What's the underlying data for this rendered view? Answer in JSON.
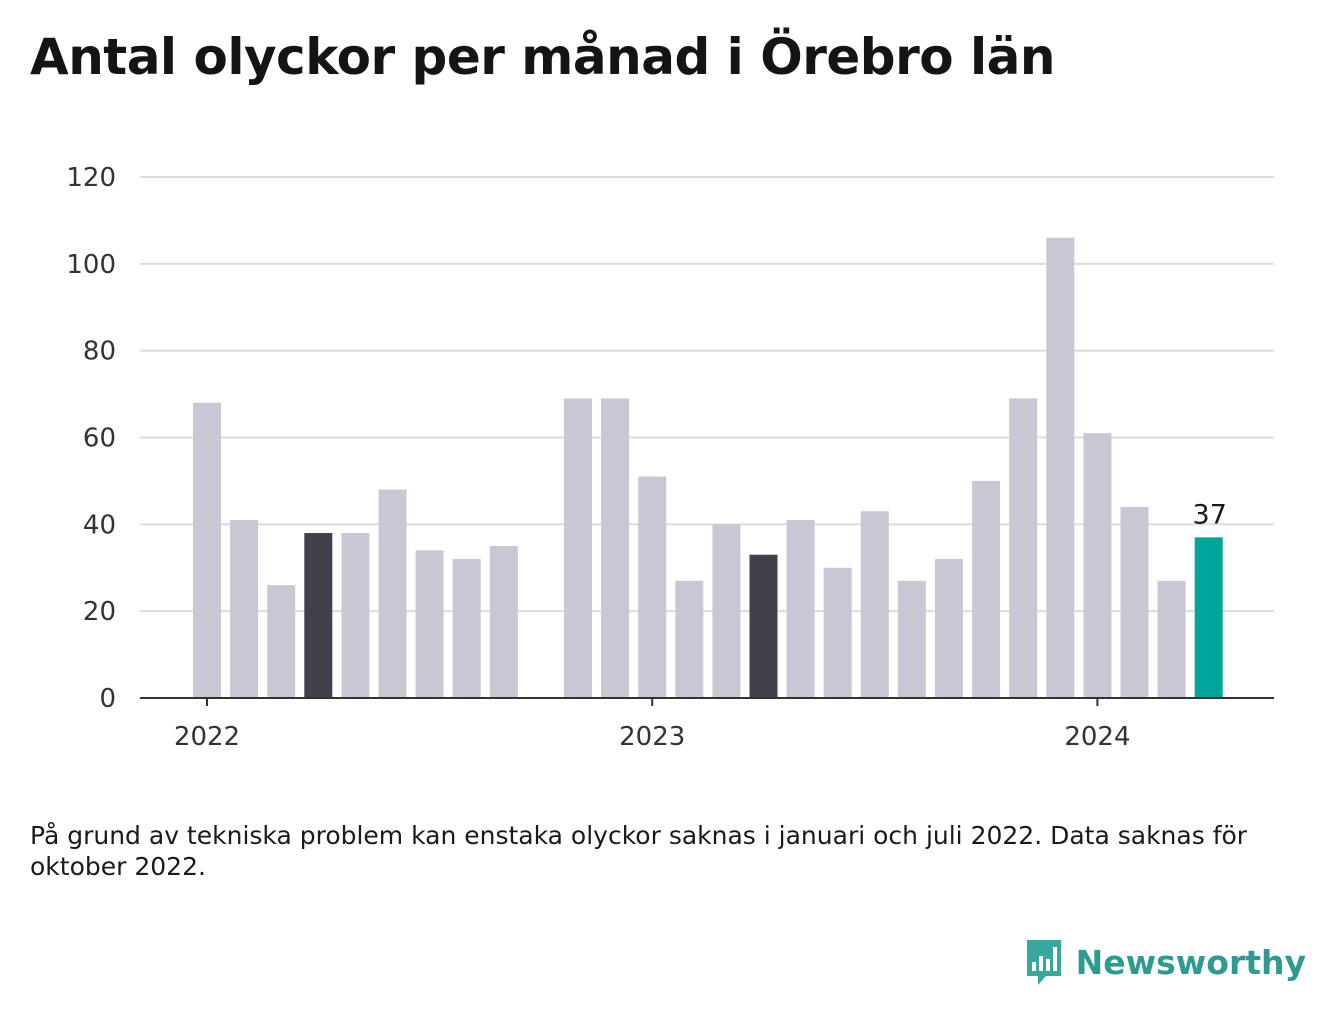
{
  "title": "Antal olyckor per månad i Örebro län",
  "note": "På grund av tekniska problem kan enstaka olyckor saknas i januari och juli 2022. Data saknas för oktober 2022.",
  "brand": {
    "name": "Newsworthy",
    "icon": "newsworthy-chart-bubble-icon"
  },
  "colors": {
    "default": "#c9c7d3",
    "highlight": "#43404c",
    "current": "#00a59a",
    "grid": "#dcdcdc",
    "axis": "#333333"
  },
  "chart_data": {
    "type": "bar",
    "x": [
      "2022-01",
      "2022-02",
      "2022-03",
      "2022-04",
      "2022-05",
      "2022-06",
      "2022-07",
      "2022-08",
      "2022-09",
      "2022-10",
      "2022-11",
      "2022-12",
      "2023-01",
      "2023-02",
      "2023-03",
      "2023-04",
      "2023-05",
      "2023-06",
      "2023-07",
      "2023-08",
      "2023-09",
      "2023-10",
      "2023-11",
      "2023-12",
      "2024-01",
      "2024-02",
      "2024-03",
      "2024-04"
    ],
    "values": [
      68,
      41,
      26,
      38,
      38,
      48,
      34,
      32,
      35,
      null,
      69,
      69,
      51,
      27,
      40,
      33,
      41,
      30,
      43,
      27,
      32,
      50,
      69,
      106,
      61,
      44,
      27,
      37
    ],
    "highlight": [
      "2022-04",
      "2023-04"
    ],
    "current": "2024-04",
    "current_label": "37",
    "ylim": [
      0,
      120
    ],
    "yticks": [
      "0",
      "20",
      "40",
      "60",
      "80",
      "100",
      "120"
    ],
    "xticks": [
      {
        "label": "2022",
        "at": "2022-01"
      },
      {
        "label": "2023",
        "at": "2023-01"
      },
      {
        "label": "2024",
        "at": "2024-01"
      }
    ],
    "grid": true,
    "title": "Antal olyckor per månad i Örebro län",
    "xlabel": "",
    "ylabel": ""
  }
}
